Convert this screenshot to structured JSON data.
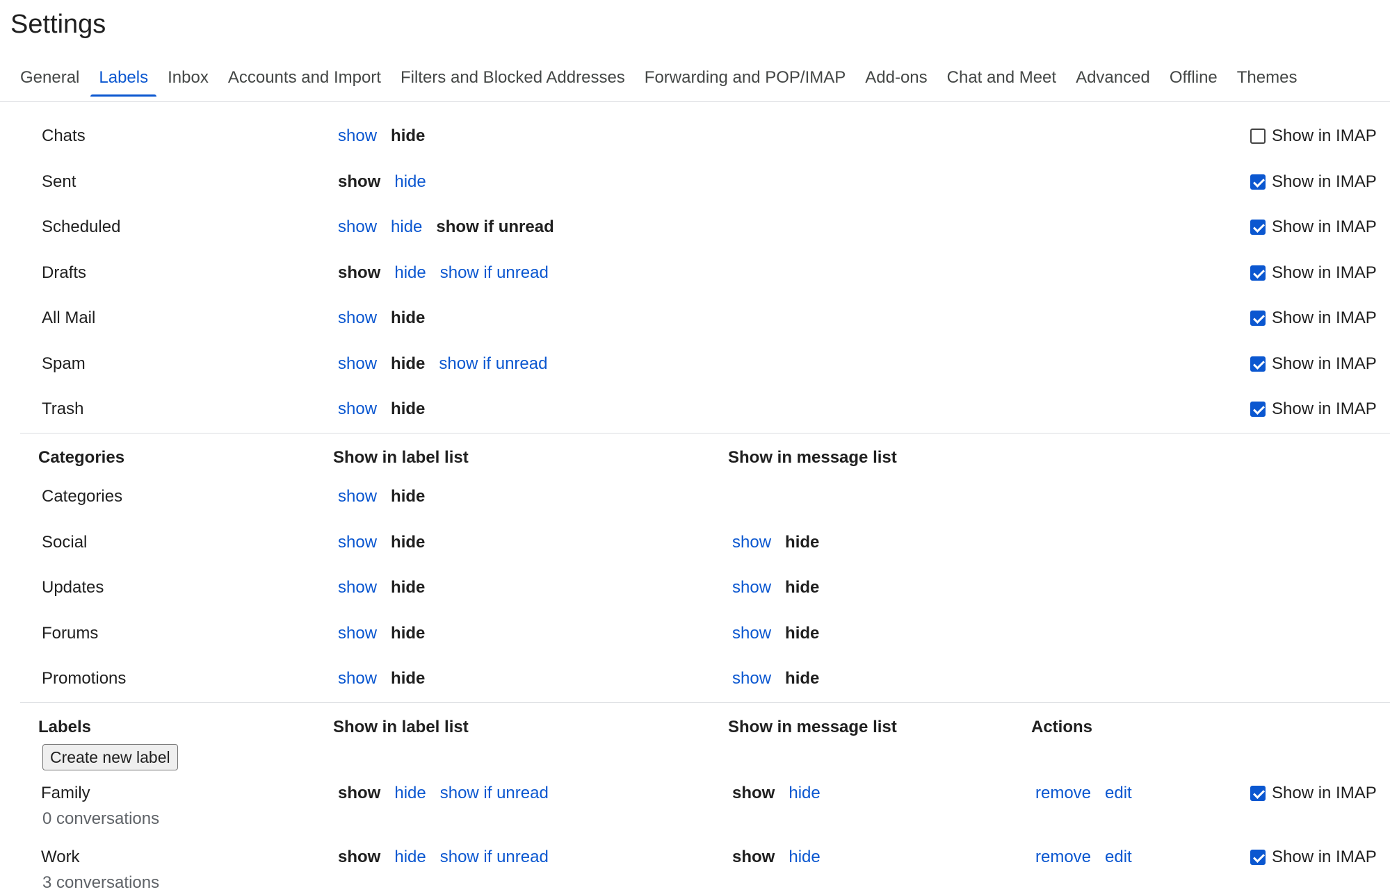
{
  "header": {
    "title": "Settings"
  },
  "tabs": [
    {
      "label": "General",
      "active": false
    },
    {
      "label": "Labels",
      "active": true
    },
    {
      "label": "Inbox",
      "active": false
    },
    {
      "label": "Accounts and Import",
      "active": false
    },
    {
      "label": "Filters and Blocked Addresses",
      "active": false
    },
    {
      "label": "Forwarding and POP/IMAP",
      "active": false
    },
    {
      "label": "Add-ons",
      "active": false
    },
    {
      "label": "Chat and Meet",
      "active": false
    },
    {
      "label": "Advanced",
      "active": false
    },
    {
      "label": "Offline",
      "active": false
    },
    {
      "label": "Themes",
      "active": false
    }
  ],
  "system_labels": [
    {
      "name": "Chats",
      "options": [
        {
          "text": "show",
          "selected": false
        },
        {
          "text": "hide",
          "selected": true
        }
      ],
      "imap": {
        "label": "Show in IMAP",
        "checked": false
      }
    },
    {
      "name": "Sent",
      "options": [
        {
          "text": "show",
          "selected": true
        },
        {
          "text": "hide",
          "selected": false
        }
      ],
      "imap": {
        "label": "Show in IMAP",
        "checked": true
      }
    },
    {
      "name": "Scheduled",
      "options": [
        {
          "text": "show",
          "selected": false
        },
        {
          "text": "hide",
          "selected": false
        },
        {
          "text": "show if unread",
          "selected": true
        }
      ],
      "imap": {
        "label": "Show in IMAP",
        "checked": true
      }
    },
    {
      "name": "Drafts",
      "options": [
        {
          "text": "show",
          "selected": true
        },
        {
          "text": "hide",
          "selected": false
        },
        {
          "text": "show if unread",
          "selected": false
        }
      ],
      "imap": {
        "label": "Show in IMAP",
        "checked": true
      }
    },
    {
      "name": "All Mail",
      "options": [
        {
          "text": "show",
          "selected": false
        },
        {
          "text": "hide",
          "selected": true
        }
      ],
      "imap": {
        "label": "Show in IMAP",
        "checked": true
      }
    },
    {
      "name": "Spam",
      "options": [
        {
          "text": "show",
          "selected": false
        },
        {
          "text": "hide",
          "selected": true
        },
        {
          "text": "show if unread",
          "selected": false
        }
      ],
      "imap": {
        "label": "Show in IMAP",
        "checked": true
      }
    },
    {
      "name": "Trash",
      "options": [
        {
          "text": "show",
          "selected": false
        },
        {
          "text": "hide",
          "selected": true
        }
      ],
      "imap": {
        "label": "Show in IMAP",
        "checked": true
      }
    }
  ],
  "categories": {
    "headers": [
      "Categories",
      "Show in label list",
      "Show in message list"
    ],
    "rows": [
      {
        "name": "Categories",
        "options": [
          {
            "text": "show",
            "selected": false
          },
          {
            "text": "hide",
            "selected": true
          }
        ]
      },
      {
        "name": "Social",
        "options": [
          {
            "text": "show",
            "selected": false
          },
          {
            "text": "hide",
            "selected": true
          }
        ],
        "message_options": [
          {
            "text": "show",
            "selected": false
          },
          {
            "text": "hide",
            "selected": true
          }
        ]
      },
      {
        "name": "Updates",
        "options": [
          {
            "text": "show",
            "selected": false
          },
          {
            "text": "hide",
            "selected": true
          }
        ],
        "message_options": [
          {
            "text": "show",
            "selected": false
          },
          {
            "text": "hide",
            "selected": true
          }
        ]
      },
      {
        "name": "Forums",
        "options": [
          {
            "text": "show",
            "selected": false
          },
          {
            "text": "hide",
            "selected": true
          }
        ],
        "message_options": [
          {
            "text": "show",
            "selected": false
          },
          {
            "text": "hide",
            "selected": true
          }
        ]
      },
      {
        "name": "Promotions",
        "options": [
          {
            "text": "show",
            "selected": false
          },
          {
            "text": "hide",
            "selected": true
          }
        ],
        "message_options": [
          {
            "text": "show",
            "selected": false
          },
          {
            "text": "hide",
            "selected": true
          }
        ]
      }
    ]
  },
  "labels": {
    "headers": [
      "Labels",
      "Show in label list",
      "Show in message list",
      "Actions"
    ],
    "button": "Create new label",
    "rows": [
      {
        "name": "Family",
        "count": "0 conversations",
        "options": [
          {
            "text": "show",
            "selected": true
          },
          {
            "text": "hide",
            "selected": false
          },
          {
            "text": "show if unread",
            "selected": false
          }
        ],
        "message_options": [
          {
            "text": "show",
            "selected": true
          },
          {
            "text": "hide",
            "selected": false
          }
        ],
        "actions": [
          "remove",
          "edit"
        ],
        "imap": {
          "label": "Show in IMAP",
          "checked": true
        }
      },
      {
        "name": "Work",
        "count": "3 conversations",
        "options": [
          {
            "text": "show",
            "selected": true
          },
          {
            "text": "hide",
            "selected": false
          },
          {
            "text": "show if unread",
            "selected": false
          }
        ],
        "message_options": [
          {
            "text": "show",
            "selected": true
          },
          {
            "text": "hide",
            "selected": false
          }
        ],
        "actions": [
          "remove",
          "edit"
        ],
        "imap": {
          "label": "Show in IMAP",
          "checked": true
        }
      }
    ]
  }
}
